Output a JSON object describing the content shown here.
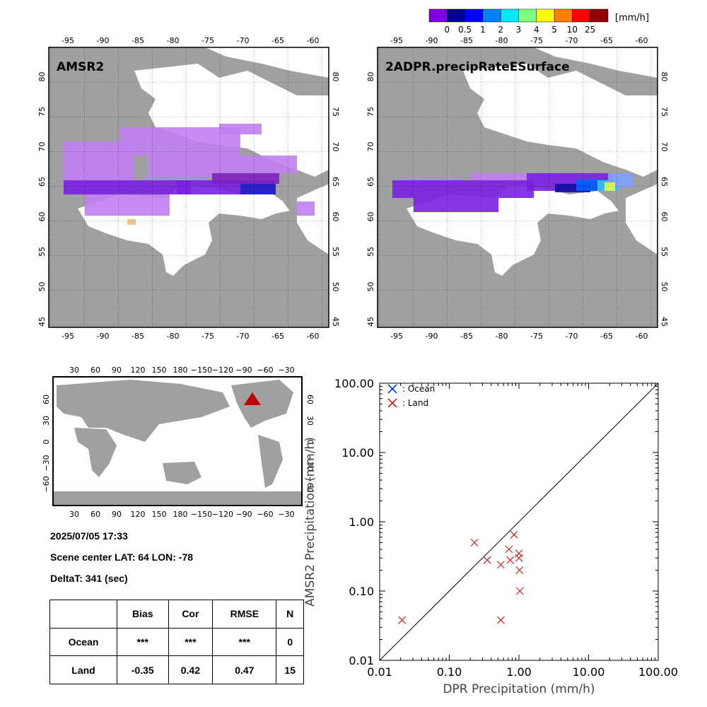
{
  "colorbar": {
    "unit": "[mm/h]",
    "tick_labels": [
      "0",
      "0.5",
      "1",
      "2",
      "3",
      "4",
      "5",
      "10",
      "25"
    ],
    "colors": [
      "#8000e0",
      "#000090",
      "#0000ff",
      "#0080ff",
      "#00e8ff",
      "#80ff80",
      "#ffff00",
      "#ff8000",
      "#ff0000",
      "#900000"
    ]
  },
  "maps": {
    "left_label": "AMSR2",
    "right_label": "2ADPR.precipRateESurface",
    "lon_ticks": [
      "-95",
      "-90",
      "-85",
      "-80",
      "-75",
      "-70",
      "-65",
      "-60"
    ],
    "lat_ticks": [
      "45",
      "50",
      "55",
      "60",
      "65",
      "70",
      "75",
      "80"
    ],
    "land_color": "#a0a0a0",
    "ocean_color": "#ffffff"
  },
  "world_map": {
    "lon_ticks": [
      "30",
      "60",
      "90",
      "120",
      "150",
      "180",
      "−150",
      "−120",
      "−90",
      "−60",
      "−30"
    ],
    "lat_ticks": [
      "60",
      "30",
      "0",
      "−30",
      "−60"
    ],
    "marker_color": "#c00000"
  },
  "info": {
    "datetime": "2025/07/05 17:33",
    "scene_center": "Scene center LAT: 64   LON: -78",
    "delta_t": "DeltaT:  341 (sec)"
  },
  "stats_table": {
    "headers": [
      "",
      "Bias",
      "Cor",
      "RMSE",
      "N"
    ],
    "rows": [
      [
        "Ocean",
        "***",
        "***",
        "***",
        "0"
      ],
      [
        "Land",
        "-0.35",
        "0.42",
        "0.47",
        "15"
      ]
    ]
  },
  "chart_data": {
    "type": "scatter",
    "xlabel": "DPR Precipitation (mm/h)",
    "ylabel": "AMSR2 Precipitation (mm/h)",
    "xscale": "log",
    "yscale": "log",
    "xlim": [
      0.01,
      100
    ],
    "ylim": [
      0.01,
      100
    ],
    "tick_labels": [
      "0.01",
      "0.10",
      "1.00",
      "10.00",
      "100.00"
    ],
    "legend_position": "top-left",
    "one_to_one_line": true,
    "series": [
      {
        "name": ": Ocean",
        "color": "#0040ff",
        "points": []
      },
      {
        "name": ": Land",
        "color": "#cc2020",
        "points": [
          [
            0.021,
            0.038
          ],
          [
            0.23,
            0.5
          ],
          [
            0.35,
            0.28
          ],
          [
            0.55,
            0.24
          ],
          [
            0.55,
            0.038
          ],
          [
            0.72,
            0.4
          ],
          [
            0.75,
            0.28
          ],
          [
            0.85,
            0.65
          ],
          [
            1.0,
            0.35
          ],
          [
            1.0,
            0.3
          ],
          [
            1.02,
            0.2
          ],
          [
            1.03,
            0.1
          ]
        ]
      }
    ]
  }
}
